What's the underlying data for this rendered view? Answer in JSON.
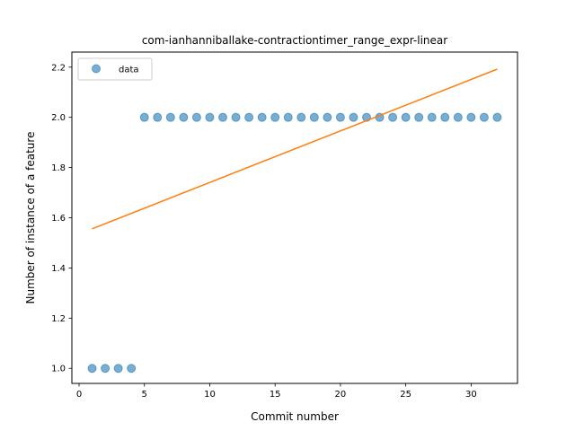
{
  "chart_data": {
    "type": "scatter",
    "title": "com-ianhanniballake-contractiontimer_range_expr-linear",
    "xlabel": "Commit number",
    "ylabel": "Number of instance of a feature",
    "xlim": [
      -0.55,
      33.55
    ],
    "ylim": [
      0.94,
      2.26
    ],
    "xticks": [
      0,
      5,
      10,
      15,
      20,
      25,
      30
    ],
    "yticks": [
      1.0,
      1.2,
      1.4,
      1.6,
      1.8,
      2.0,
      2.2
    ],
    "xtick_labels": [
      "0",
      "5",
      "10",
      "15",
      "20",
      "25",
      "30"
    ],
    "ytick_labels": [
      "1.0",
      "1.2",
      "1.4",
      "1.6",
      "1.8",
      "2.0",
      "2.2"
    ],
    "grid": false,
    "legend_position": "top-left",
    "series": [
      {
        "name": "data",
        "kind": "scatter",
        "color": "#1f77b4",
        "x": [
          1,
          2,
          3,
          4,
          5,
          6,
          7,
          8,
          9,
          10,
          11,
          12,
          13,
          14,
          15,
          16,
          17,
          18,
          19,
          20,
          21,
          22,
          23,
          24,
          25,
          26,
          27,
          28,
          29,
          30,
          31,
          32
        ],
        "y": [
          1,
          1,
          1,
          1,
          2,
          2,
          2,
          2,
          2,
          2,
          2,
          2,
          2,
          2,
          2,
          2,
          2,
          2,
          2,
          2,
          2,
          2,
          2,
          2,
          2,
          2,
          2,
          2,
          2,
          2,
          2,
          2
        ]
      },
      {
        "kind": "line",
        "color": "#ff7f0e",
        "x": [
          1,
          32
        ],
        "y": [
          1.556,
          2.192
        ]
      }
    ]
  }
}
